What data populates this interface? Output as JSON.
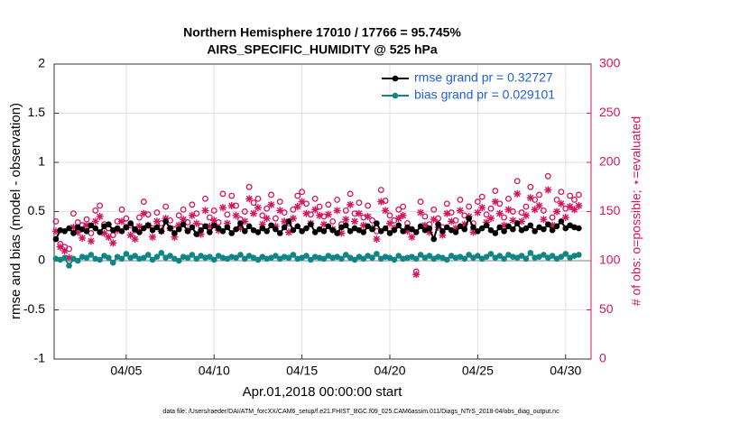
{
  "chart_data": {
    "type": "line",
    "title": "Northern Hemisphere 17010 / 17766 = 95.745%",
    "subtitle": "AIRS_SPECIFIC_HUMIDITY @ 525 hPa",
    "xlabel": "Apr.01,2018 00:00:00 start",
    "ylabel": "rmse and bias (model - observation)",
    "y2label": "# of obs: o=possible; ⋆=evaluated",
    "footnote": "data file: /Users/raeder/DAI/ATM_forcXX/CAM6_setup/f.e21.FHIST_BGC.f09_025.CAM6assim.011/Diags_NTrS_2018-04/obs_diag_output.nc",
    "x": [
      1,
      1.25,
      1.5,
      1.75,
      2,
      2.25,
      2.5,
      2.75,
      3,
      3.25,
      3.5,
      3.75,
      4,
      4.25,
      4.5,
      4.75,
      5,
      5.25,
      5.5,
      5.75,
      6,
      6.25,
      6.5,
      6.75,
      7,
      7.25,
      7.5,
      7.75,
      8,
      8.25,
      8.5,
      8.75,
      9,
      9.25,
      9.5,
      9.75,
      10,
      10.25,
      10.5,
      10.75,
      11,
      11.25,
      11.5,
      11.75,
      12,
      12.25,
      12.5,
      12.75,
      13,
      13.25,
      13.5,
      13.75,
      14,
      14.25,
      14.5,
      14.75,
      15,
      15.25,
      15.5,
      15.75,
      16,
      16.25,
      16.5,
      16.75,
      17,
      17.25,
      17.5,
      17.75,
      18,
      18.25,
      18.5,
      18.75,
      19,
      19.25,
      19.5,
      19.75,
      20,
      20.25,
      20.5,
      20.75,
      21,
      21.25,
      21.5,
      21.75,
      22,
      22.25,
      22.5,
      22.75,
      23,
      23.25,
      23.5,
      23.75,
      24,
      24.25,
      24.5,
      24.75,
      25,
      25.25,
      25.5,
      25.75,
      26,
      26.25,
      26.5,
      26.75,
      27,
      27.25,
      27.5,
      27.75,
      28,
      28.25,
      28.5,
      28.75,
      29,
      29.25,
      29.5,
      29.75,
      30,
      30.25,
      30.5,
      30.75
    ],
    "xlim": [
      0.9,
      31.45
    ],
    "xticks": [
      {
        "value": 5,
        "label": "04/05"
      },
      {
        "value": 10,
        "label": "04/10"
      },
      {
        "value": 15,
        "label": "04/15"
      },
      {
        "value": 20,
        "label": "04/20"
      },
      {
        "value": 25,
        "label": "04/25"
      },
      {
        "value": 30,
        "label": "04/30"
      }
    ],
    "ylim": [
      -1,
      2
    ],
    "yticks": [
      -1,
      -0.5,
      0,
      0.5,
      1,
      1.5,
      2
    ],
    "y2lim": [
      0,
      300
    ],
    "y2ticks": [
      0,
      50,
      100,
      150,
      200,
      250,
      300
    ],
    "y2color": "#d6145f",
    "grid": true,
    "legend": "upper right",
    "legend_text_color": "#1f5fd6",
    "series": [
      {
        "name": "rmse grand pr = 0.32727",
        "color": "#000000",
        "marker": "o",
        "linestyle": "solid",
        "values": [
          0.22,
          0.31,
          0.3,
          0.33,
          0.28,
          0.34,
          0.32,
          0.3,
          0.36,
          0.33,
          0.29,
          0.35,
          0.37,
          0.31,
          0.33,
          0.3,
          0.34,
          0.38,
          0.32,
          0.29,
          0.33,
          0.36,
          0.31,
          0.34,
          0.3,
          0.4,
          0.33,
          0.28,
          0.32,
          0.37,
          0.3,
          0.34,
          0.27,
          0.31,
          0.35,
          0.29,
          0.36,
          0.33,
          0.3,
          0.34,
          0.28,
          0.32,
          0.38,
          0.3,
          0.35,
          0.31,
          0.29,
          0.33,
          0.3,
          0.36,
          0.32,
          0.28,
          0.34,
          0.4,
          0.31,
          0.35,
          0.3,
          0.33,
          0.37,
          0.29,
          0.32,
          0.3,
          0.35,
          0.31,
          0.28,
          0.34,
          0.36,
          0.3,
          0.33,
          0.31,
          0.29,
          0.35,
          0.32,
          0.38,
          0.3,
          0.33,
          0.28,
          0.31,
          0.36,
          0.3,
          0.34,
          0.32,
          0.29,
          0.35,
          0.31,
          0.33,
          0.22,
          0.37,
          0.3,
          0.34,
          0.31,
          0.29,
          0.35,
          0.32,
          0.43,
          0.34,
          0.3,
          0.33,
          0.36,
          0.31,
          0.28,
          0.34,
          0.3,
          0.35,
          0.32,
          0.38,
          0.31,
          0.33,
          0.36,
          0.3,
          0.34,
          0.32,
          0.37,
          0.31,
          0.35,
          0.4,
          0.33,
          0.36,
          0.34,
          0.33
        ]
      },
      {
        "name": "bias grand pr = 0.029101",
        "color": "#0f8585",
        "marker": "o",
        "linestyle": "solid",
        "values": [
          0.02,
          0.01,
          0.03,
          -0.05,
          0.02,
          0.0,
          0.04,
          0.03,
          0.06,
          0.02,
          0.01,
          0.05,
          0.03,
          -0.02,
          0.04,
          0.02,
          0.07,
          0.03,
          0.05,
          0.02,
          0.03,
          0.06,
          0.01,
          0.04,
          0.08,
          0.03,
          0.05,
          0.02,
          0.0,
          0.04,
          0.03,
          0.06,
          0.02,
          0.05,
          0.03,
          0.04,
          0.01,
          0.05,
          0.03,
          0.02,
          0.04,
          0.03,
          0.06,
          0.02,
          0.05,
          0.03,
          0.01,
          0.04,
          0.02,
          0.03,
          0.05,
          0.02,
          0.04,
          0.03,
          0.06,
          0.02,
          0.03,
          0.05,
          0.01,
          0.04,
          0.03,
          0.02,
          0.05,
          0.03,
          0.04,
          0.02,
          0.06,
          0.03,
          0.01,
          0.04,
          0.02,
          0.05,
          0.03,
          0.07,
          0.02,
          0.04,
          0.03,
          0.01,
          0.05,
          0.02,
          0.03,
          0.04,
          0.02,
          0.06,
          0.03,
          0.05,
          0.02,
          0.04,
          0.03,
          0.01,
          0.05,
          0.03,
          0.04,
          0.02,
          0.06,
          0.03,
          0.05,
          0.02,
          0.04,
          0.07,
          0.03,
          0.05,
          0.02,
          0.06,
          0.04,
          0.03,
          0.05,
          0.02,
          0.08,
          0.03,
          0.04,
          0.06,
          0.03,
          0.05,
          0.02,
          0.04,
          0.07,
          0.03,
          0.05,
          0.06
        ]
      },
      {
        "color": "#d6145f",
        "marker": "open-circle",
        "linestyle": "none",
        "axis": "y2",
        "values": [
          140,
          117,
          114,
          112,
          148,
          139,
          136,
          142,
          128,
          151,
          156,
          137,
          133,
          126,
          140,
          152,
          143,
          136,
          131,
          144,
          160,
          147,
          133,
          149,
          138,
          155,
          141,
          132,
          146,
          152,
          139,
          157,
          148,
          135,
          163,
          144,
          151,
          139,
          168,
          147,
          166,
          156,
          142,
          150,
          175,
          159,
          163,
          146,
          153,
          167,
          143,
          160,
          149,
          138,
          152,
          166,
          170,
          158,
          147,
          163,
          155,
          145,
          157,
          140,
          162,
          137,
          151,
          168,
          148,
          159,
          144,
          156,
          141,
          130,
          172,
          161,
          146,
          141,
          152,
          155,
          138,
          132,
          89,
          160,
          145,
          137,
          152,
          143,
          134,
          158,
          149,
          141,
          162,
          146,
          155,
          138,
          160,
          165,
          147,
          153,
          171,
          158,
          144,
          163,
          150,
          181,
          149,
          155,
          175,
          162,
          167,
          151,
          186,
          144,
          162,
          170,
          153,
          166,
          162,
          167
        ]
      },
      {
        "color": "#d6145f",
        "marker": "asterisk",
        "linestyle": "none",
        "axis": "y2",
        "values": [
          130,
          114,
          110,
          103,
          134,
          129,
          123,
          136,
          120,
          140,
          145,
          128,
          124,
          118,
          131,
          140,
          134,
          126,
          122,
          135,
          148,
          136,
          124,
          140,
          130,
          143,
          133,
          124,
          136,
          142,
          131,
          146,
          138,
          127,
          151,
          135,
          141,
          131,
          154,
          138,
          156,
          146,
          133,
          140,
          163,
          148,
          154,
          137,
          143,
          157,
          135,
          151,
          140,
          129,
          143,
          155,
          160,
          148,
          138,
          152,
          146,
          137,
          147,
          132,
          151,
          128,
          142,
          157,
          140,
          148,
          136,
          145,
          133,
          122,
          160,
          151,
          138,
          133,
          143,
          146,
          130,
          124,
          86,
          149,
          136,
          129,
          142,
          134,
          126,
          148,
          140,
          133,
          151,
          137,
          145,
          129,
          149,
          154,
          139,
          143,
          160,
          148,
          136,
          152,
          141,
          168,
          140,
          146,
          164,
          152,
          156,
          142,
          172,
          136,
          150,
          158,
          144,
          155,
          152,
          156
        ]
      }
    ]
  }
}
